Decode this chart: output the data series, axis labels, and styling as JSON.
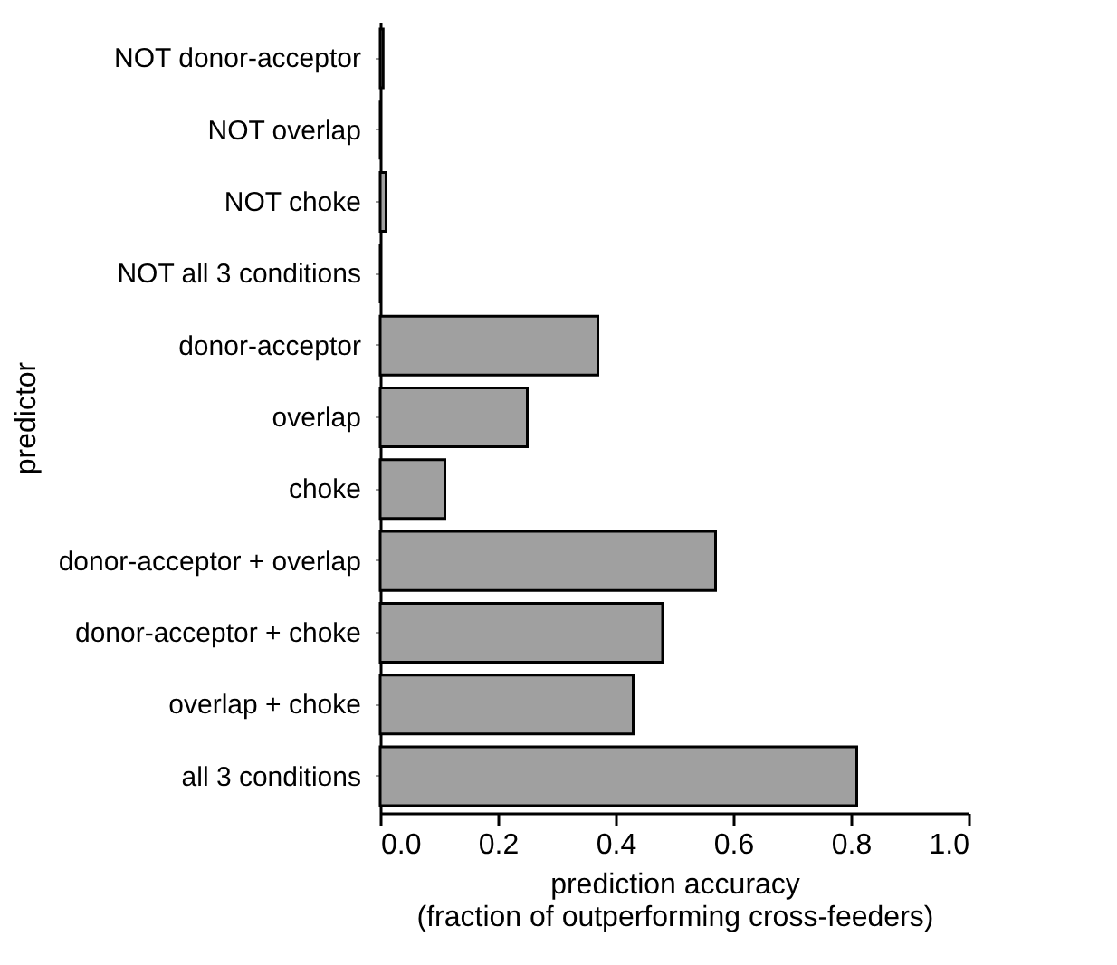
{
  "chart_data": {
    "type": "bar",
    "orientation": "horizontal",
    "categories": [
      "NOT donor-acceptor",
      "NOT overlap",
      "NOT choke",
      "NOT all 3 conditions",
      "donor-acceptor",
      "overlap",
      "choke",
      "donor-acceptor + overlap",
      "donor-acceptor  + choke",
      "overlap + choke",
      "all 3 conditions"
    ],
    "values": [
      0.005,
      0,
      0.01,
      0,
      0.37,
      0.25,
      0.11,
      0.57,
      0.48,
      0.43,
      0.81
    ],
    "color": "#a0a0a0",
    "xlim": [
      0,
      1
    ],
    "xticks": [
      {
        "value": 0,
        "label": "0.0"
      },
      {
        "value": 0.2,
        "label": "0.2"
      },
      {
        "value": 0.4,
        "label": "0.4"
      },
      {
        "value": 0.6,
        "label": "0.6"
      },
      {
        "value": 0.8,
        "label": "0.8"
      },
      {
        "value": 1,
        "label": "1.0"
      }
    ],
    "xlabel": "prediction accuracy\n(fraction of outperforming cross-feeders)",
    "ylabel": "predictor",
    "grid": false
  }
}
